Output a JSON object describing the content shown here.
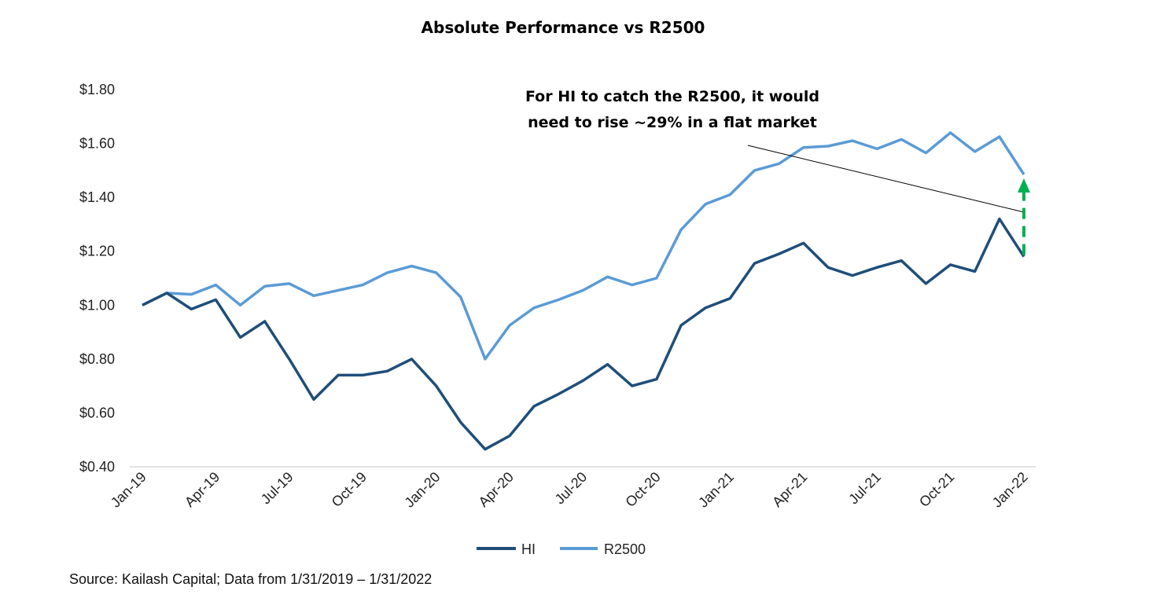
{
  "chart_data": {
    "type": "line",
    "title": "Absolute Performance vs R2500",
    "xlabel": "",
    "ylabel": "",
    "ylim": [
      0.4,
      1.8
    ],
    "y_ticks": [
      "$0.40",
      "$0.60",
      "$0.80",
      "$1.00",
      "$1.20",
      "$1.40",
      "$1.60",
      "$1.80"
    ],
    "y_tick_values": [
      0.4,
      0.6,
      0.8,
      1.0,
      1.2,
      1.4,
      1.6,
      1.8
    ],
    "x": [
      "Jan-19",
      "Feb-19",
      "Mar-19",
      "Apr-19",
      "May-19",
      "Jun-19",
      "Jul-19",
      "Aug-19",
      "Sep-19",
      "Oct-19",
      "Nov-19",
      "Dec-19",
      "Jan-20",
      "Feb-20",
      "Mar-20",
      "Apr-20",
      "May-20",
      "Jun-20",
      "Jul-20",
      "Aug-20",
      "Sep-20",
      "Oct-20",
      "Nov-20",
      "Dec-20",
      "Jan-21",
      "Feb-21",
      "Mar-21",
      "Apr-21",
      "May-21",
      "Jun-21",
      "Jul-21",
      "Aug-21",
      "Sep-21",
      "Oct-21",
      "Nov-21",
      "Dec-21",
      "Jan-22"
    ],
    "x_ticks": [
      "Jan-19",
      "Apr-19",
      "Jul-19",
      "Oct-19",
      "Jan-20",
      "Apr-20",
      "Jul-20",
      "Oct-20",
      "Jan-21",
      "Apr-21",
      "Jul-21",
      "Oct-21",
      "Jan-22"
    ],
    "grid": false,
    "legend_position": "bottom",
    "series": [
      {
        "name": "HI",
        "color": "#1f4e79",
        "values": [
          1.0,
          1.045,
          0.985,
          1.02,
          0.88,
          0.94,
          0.8,
          0.65,
          0.74,
          0.74,
          0.755,
          0.8,
          0.7,
          0.565,
          0.465,
          0.515,
          0.625,
          0.67,
          0.72,
          0.78,
          0.7,
          0.725,
          0.925,
          0.99,
          1.025,
          1.155,
          1.19,
          1.23,
          1.14,
          1.11,
          1.14,
          1.165,
          1.08,
          1.15,
          1.125,
          1.32,
          1.18
        ]
      },
      {
        "name": "R2500",
        "color": "#5b9bd5",
        "values": [
          1.0,
          1.045,
          1.04,
          1.075,
          1.0,
          1.07,
          1.08,
          1.035,
          1.055,
          1.075,
          1.12,
          1.145,
          1.12,
          1.03,
          0.8,
          0.925,
          0.99,
          1.02,
          1.055,
          1.105,
          1.075,
          1.1,
          1.28,
          1.375,
          1.41,
          1.5,
          1.525,
          1.585,
          1.59,
          1.61,
          1.58,
          1.615,
          1.565,
          1.64,
          1.57,
          1.625,
          1.485
        ]
      }
    ],
    "annotation": {
      "lines": [
        "For HI to catch the R2500, it would",
        "need to rise ~29% in a flat market"
      ],
      "arrow_color": "#00b050"
    },
    "source": "Source: Kailash Capital; Data from 1/31/2019 – 1/31/2022"
  }
}
